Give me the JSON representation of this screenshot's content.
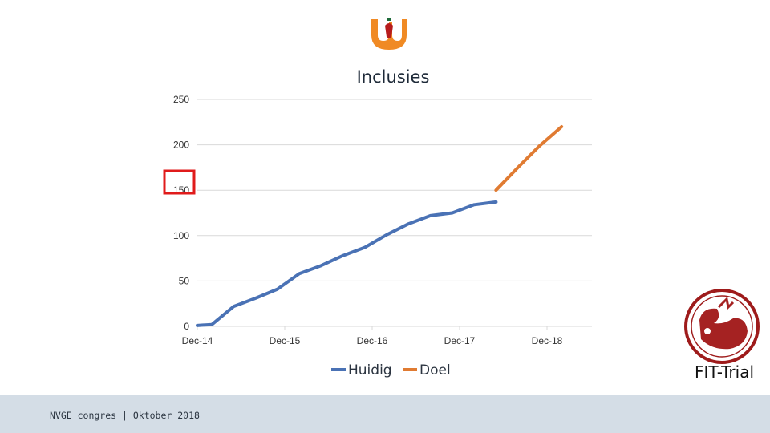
{
  "slide": {
    "title": "Inclusies",
    "footer": "NVGE congres | Oktober 2018",
    "badge_text": "FIT-Trial",
    "logo_icon": "tulip-logo-icon",
    "badge_icon": "fit-trial-badge-icon"
  },
  "colors": {
    "huidig": "#4a72b5",
    "doel": "#e07b32",
    "highlight": "#e01b1b",
    "logo_orange": "#f08a24",
    "logo_red": "#b71c1c",
    "badge_red": "#9e1b1b"
  },
  "chart_data": {
    "type": "line",
    "title": "Inclusies",
    "ylim": [
      0,
      250
    ],
    "yticks": [
      "250",
      "200",
      "150",
      "100",
      "50",
      "0"
    ],
    "xticks": [
      "Dec-14",
      "Dec-15",
      "Dec-16",
      "Dec-17",
      "Dec-18"
    ],
    "grid": true,
    "legend": "bottom",
    "highlighted_tick": "150",
    "series": [
      {
        "name": "Huidig",
        "x": [
          "2014-12",
          "2015-02",
          "2015-05",
          "2015-08",
          "2015-11",
          "2016-02",
          "2016-05",
          "2016-08",
          "2016-11",
          "2017-02",
          "2017-05",
          "2017-08",
          "2017-11",
          "2018-02",
          "2018-05"
        ],
        "values": [
          1,
          2,
          22,
          31,
          41,
          58,
          67,
          78,
          87,
          101,
          113,
          122,
          125,
          134,
          137
        ]
      },
      {
        "name": "Doel",
        "x": [
          "2018-05",
          "2018-08",
          "2018-11",
          "2019-02"
        ],
        "values": [
          150,
          175,
          199,
          220
        ]
      }
    ]
  }
}
